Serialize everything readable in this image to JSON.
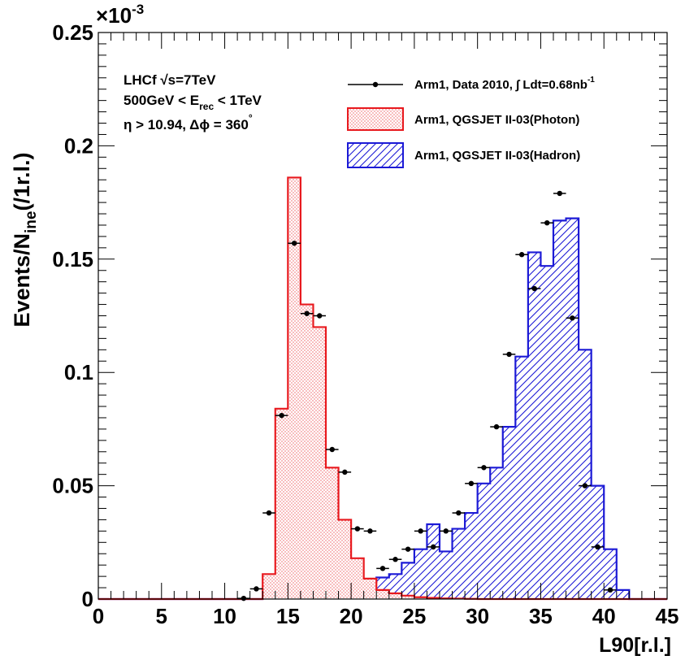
{
  "chart_data": {
    "type": "bar",
    "xlabel": "L90[r.l.]",
    "ylabel_main": "Events/N",
    "ylabel_sub": "ine",
    "ylabel_unit": "(/1r.l.)",
    "y_exponent_label": "×10",
    "y_exponent_power": "-3",
    "xlim": [
      0,
      45
    ],
    "ylim": [
      0,
      0.25
    ],
    "x_ticks": [
      "0",
      "5",
      "10",
      "15",
      "20",
      "25",
      "30",
      "35",
      "40",
      "45"
    ],
    "y_ticks": [
      "0",
      "0.05",
      "0.1",
      "0.15",
      "0.2",
      "0.25"
    ],
    "grid": false,
    "legend_position": "top-right",
    "info_lines": {
      "line1_prefix": "LHCf ",
      "line1_sqrt": "√s",
      "line1_suffix": "=7TeV",
      "line2_prefix": "500GeV < E",
      "line2_sub": "rec",
      "line2_suffix": " < 1TeV",
      "line3": "η > 10.94, Δϕ = 360",
      "line3_sup": "°"
    },
    "legend": {
      "data_label": "Arm1, Data 2010, ∫ Ldt=0.68nb",
      "data_label_sup": "-1",
      "photon_label": "Arm1, QGSJET II-03(Photon)",
      "hadron_label": "Arm1, QGSJET II-03(Hadron)"
    },
    "colors": {
      "photon": "#e8191e",
      "hadron": "#1c1ad6",
      "data": "#000000"
    },
    "bin_edges": [
      0,
      1,
      2,
      3,
      4,
      5,
      6,
      7,
      8,
      9,
      10,
      11,
      12,
      13,
      14,
      15,
      16,
      17,
      18,
      19,
      20,
      21,
      22,
      23,
      24,
      25,
      26,
      27,
      28,
      29,
      30,
      31,
      32,
      33,
      34,
      35,
      36,
      37,
      38,
      39,
      40,
      41,
      42,
      43,
      44,
      45
    ],
    "series": [
      {
        "name": "Arm1, QGSJET II-03(Photon)",
        "kind": "hist",
        "values": [
          0,
          0,
          0,
          0,
          0,
          0,
          0,
          0,
          0,
          0,
          0,
          0,
          0,
          0.011,
          0.084,
          0.186,
          0.13,
          0.12,
          0.058,
          0.035,
          0.018,
          0.009,
          0.004,
          0.0025,
          0.0015,
          0.0008,
          0.0005,
          0.0003,
          0.0002,
          0.0001,
          0,
          0,
          0,
          0,
          0,
          0,
          0,
          0,
          0,
          0,
          0,
          0,
          0,
          0,
          0
        ]
      },
      {
        "name": "Arm1, QGSJET II-03(Hadron)",
        "kind": "hist",
        "values": [
          0,
          0,
          0,
          0,
          0,
          0,
          0,
          0,
          0,
          0,
          0,
          0,
          0,
          0.0002,
          0.0005,
          0.0008,
          0.001,
          0.0015,
          0.002,
          0.0045,
          0.0065,
          0.0075,
          0.0095,
          0.011,
          0.016,
          0.022,
          0.033,
          0.021,
          0.031,
          0.038,
          0.051,
          0.058,
          0.076,
          0.107,
          0.153,
          0.147,
          0.167,
          0.168,
          0.11,
          0.05,
          0.022,
          0.004,
          0,
          0,
          0
        ]
      },
      {
        "name": "Arm1, Data 2010",
        "kind": "points",
        "x": [
          11.5,
          12.5,
          13.5,
          14.5,
          15.5,
          16.5,
          17.5,
          18.5,
          19.5,
          20.5,
          21.5,
          22.5,
          23.5,
          24.5,
          25.5,
          26.5,
          27.5,
          28.5,
          29.5,
          30.5,
          31.5,
          32.5,
          33.5,
          34.5,
          35.5,
          36.5,
          37.5,
          38.5,
          39.5,
          40.5
        ],
        "y": [
          0.0003,
          0.0045,
          0.038,
          0.081,
          0.157,
          0.126,
          0.125,
          0.066,
          0.056,
          0.031,
          0.03,
          0.0135,
          0.0175,
          0.022,
          0.03,
          0.023,
          0.03,
          0.038,
          0.051,
          0.058,
          0.076,
          0.108,
          0.152,
          0.137,
          0.166,
          0.179,
          0.124,
          0.05,
          0.023,
          0.004
        ]
      }
    ]
  }
}
